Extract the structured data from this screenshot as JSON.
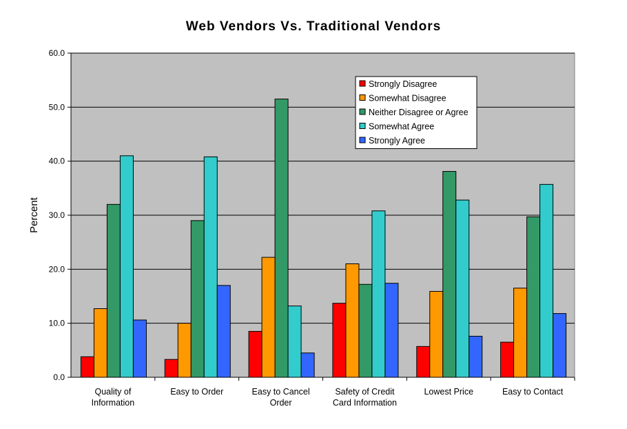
{
  "chart_data": {
    "type": "bar",
    "title": "Web Vendors Vs. Traditional Vendors",
    "ylabel": "Percent",
    "xlabel": "",
    "ylim": [
      0,
      60
    ],
    "yticks": [
      "0.0",
      "10.0",
      "20.0",
      "30.0",
      "40.0",
      "50.0",
      "60.0"
    ],
    "grid": true,
    "legend_position": "top-right",
    "plot_background": "#c0c0c0",
    "categories": [
      [
        "Quality of",
        "Information"
      ],
      [
        "Easy to Order"
      ],
      [
        "Easy to Cancel",
        "Order"
      ],
      [
        "Safety of Credit",
        "Card Information"
      ],
      [
        "Lowest Price"
      ],
      [
        "Easy to Contact"
      ]
    ],
    "series": [
      {
        "name": "Strongly Disagree",
        "color": "#ff0000",
        "values": [
          3.8,
          3.3,
          8.5,
          13.7,
          5.7,
          6.5
        ]
      },
      {
        "name": "Somewhat Disagree",
        "color": "#ff9900",
        "values": [
          12.7,
          10.0,
          22.2,
          21.0,
          15.9,
          16.5
        ]
      },
      {
        "name": "Neither Disagree or Agree",
        "color": "#339966",
        "values": [
          32.0,
          29.0,
          51.5,
          17.2,
          38.1,
          29.7
        ]
      },
      {
        "name": "Somewhat Agree",
        "color": "#33cccc",
        "values": [
          41.0,
          40.8,
          13.2,
          30.8,
          32.8,
          35.7
        ]
      },
      {
        "name": "Strongly Agree",
        "color": "#3366ff",
        "values": [
          10.6,
          17.0,
          4.5,
          17.4,
          7.6,
          11.8
        ]
      }
    ]
  }
}
